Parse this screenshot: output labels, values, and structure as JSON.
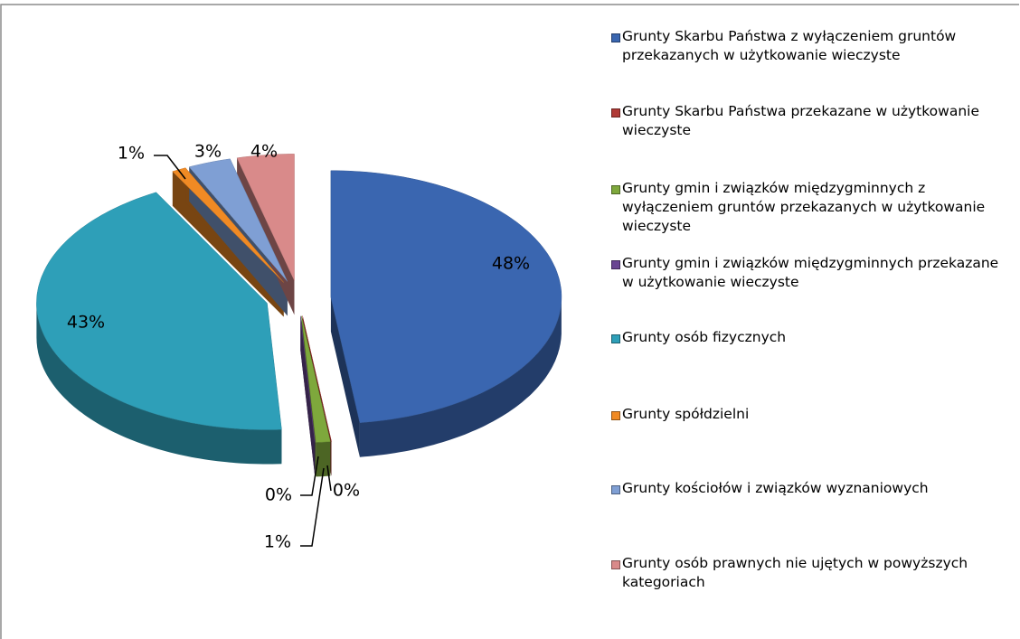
{
  "chart_data": {
    "type": "pie",
    "categories": [
      "Grunty Skarbu Państwa z wyłączeniem gruntów przekazanych w użytkowanie wieczyste",
      "Grunty Skarbu Państwa przekazane w użytkowanie wieczyste",
      "Grunty gmin i związków międzygminnych z wyłączeniem gruntów przekazanych w użytkowanie wieczyste",
      "Grunty gmin i związków międzygminnych przekazane w użytkowanie wieczyste",
      "Grunty osób fizycznych",
      "Grunty spółdzielni",
      "Grunty kościołów i związków wyznaniowych",
      "Grunty osób prawnych nie ujętych w powyższych kategoriach"
    ],
    "values": [
      48,
      0,
      1,
      0,
      43,
      1,
      3,
      4
    ],
    "value_labels": [
      "48%",
      "0%",
      "1%",
      "0%",
      "43%",
      "1%",
      "3%",
      "4%"
    ],
    "colors": [
      "#3a66b0",
      "#b03a36",
      "#7ea83c",
      "#6a4592",
      "#2e9fb8",
      "#f08a24",
      "#7f9fd4",
      "#d98a8a"
    ],
    "legend": "right"
  }
}
